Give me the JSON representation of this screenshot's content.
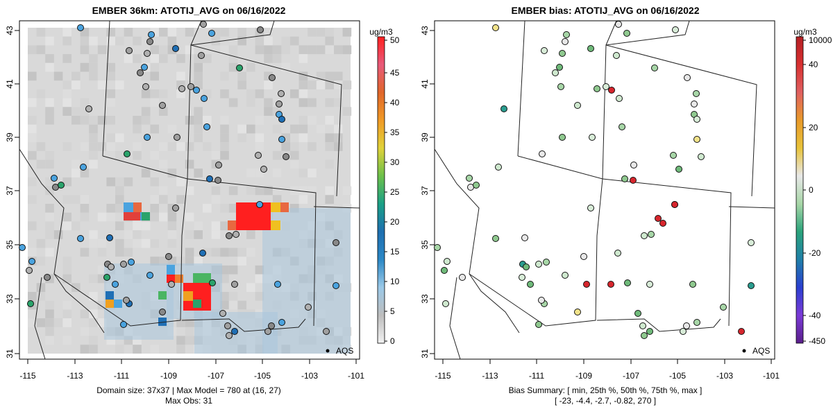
{
  "left_panel": {
    "title": "EMBER 36km: ATOTIJ_AVG on 06/16/2022",
    "colorbar_unit": "ug/m3",
    "colorbar_ticks": [
      "0",
      "5",
      "10",
      "15",
      "20",
      "25",
      "30",
      "35",
      "40",
      "45",
      "50"
    ],
    "footer_line1": "Domain size: 37x37 | Max Model = 780 at (16, 27)",
    "footer_line2": "Max Obs: 31",
    "legend_label": "AQS"
  },
  "right_panel": {
    "title": "EMBER bias: ATOTIJ_AVG on 06/16/2022",
    "colorbar_unit": "ug/m3",
    "colorbar_ticks": [
      "10000",
      "40",
      "20",
      "0",
      "-20",
      "-40",
      "-450"
    ],
    "footer_line1": "Bias Summary: [ min, 25th %, 50th %, 75th %, max ]",
    "footer_line2": "[ -23,   -4.4,   -2.7,   -0.82,   270 ]",
    "legend_label": "AQS"
  },
  "axes": {
    "x_ticks": [
      "-115",
      "-113",
      "-111",
      "-109",
      "-107",
      "-105",
      "-103",
      "-101"
    ],
    "y_ticks": [
      "43",
      "41",
      "39",
      "37",
      "35",
      "33",
      "31"
    ]
  },
  "colors": {
    "background_gray": "#d9d9d9",
    "hotspot_red": "#ff1f1f",
    "obs_blue": "#4aa3df",
    "bias_green": "#8fc98f"
  }
}
